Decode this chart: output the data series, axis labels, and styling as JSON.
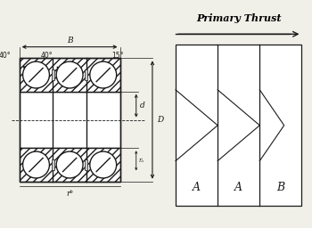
{
  "bg_color": "#f0efe8",
  "line_color": "#1a1a1a",
  "title_text": "Primary Thrust",
  "dim_B": "B",
  "dim_D": "D",
  "dim_d": "d",
  "dim_ra": "rₐ",
  "dim_rb": "rᵇ",
  "angle1": "40°",
  "angle2": "40°",
  "angle3": "15°",
  "figsize": [
    3.5,
    2.56
  ],
  "dpi": 100,
  "col_labels": [
    "A",
    "A",
    "B"
  ]
}
